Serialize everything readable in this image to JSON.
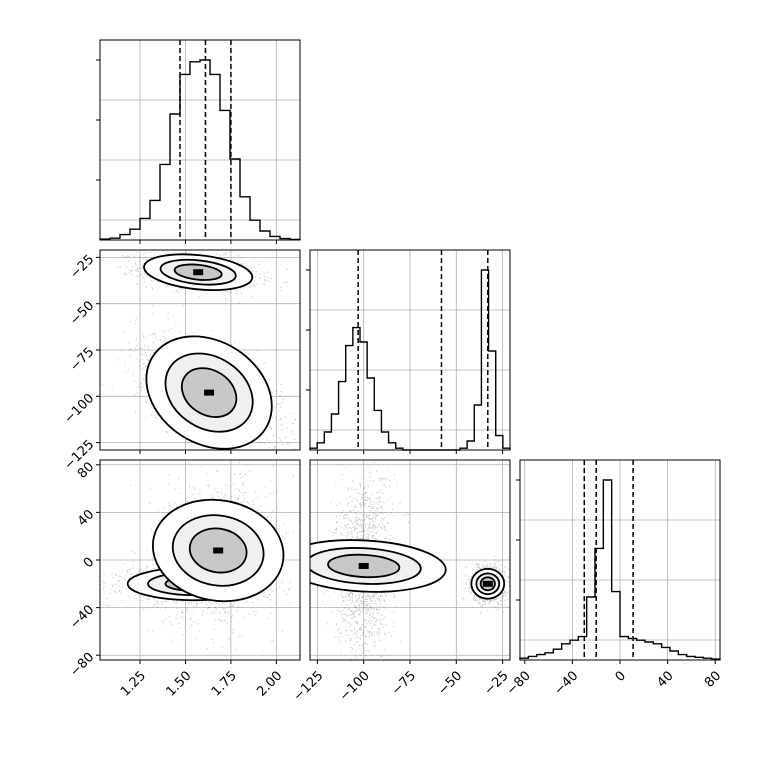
{
  "chart_data": {
    "type": "corner",
    "parameters": [
      {
        "range": [
          1.03,
          2.13
        ],
        "ticks": [
          1.25,
          1.5,
          1.75,
          2.0
        ],
        "tick_labels": [
          "1.25",
          "1.50",
          "1.75",
          "2.00"
        ],
        "quantiles": [
          1.47,
          1.61,
          1.75
        ]
      },
      {
        "range": [
          -129,
          -21
        ],
        "ticks": [
          -125,
          -100,
          -75,
          -50,
          -25
        ],
        "tick_labels": [
          "−125",
          "−100",
          "−75",
          "−50",
          "−25"
        ],
        "quantiles": [
          -103,
          -58,
          -33
        ]
      },
      {
        "range": [
          -84,
          84
        ],
        "ticks": [
          -80,
          -40,
          0,
          40,
          80
        ],
        "tick_labels": [
          "−80",
          "−40",
          "0",
          "40",
          "80"
        ],
        "quantiles": [
          -30,
          -20,
          11
        ]
      }
    ],
    "histograms": [
      {
        "param": 0,
        "edges": [
          1.03,
          2.13
        ],
        "counts": [
          0.5,
          1,
          3,
          6,
          12,
          22,
          42,
          70,
          92,
          99,
          100,
          92,
          72,
          45,
          24,
          11,
          5,
          2,
          0.8,
          0.3
        ]
      },
      {
        "param": 1,
        "edges": [
          -129,
          -21
        ],
        "counts": [
          1,
          4,
          10,
          20,
          38,
          58,
          68,
          60,
          40,
          22,
          10,
          4,
          1,
          0,
          0,
          0,
          0,
          0,
          0,
          0,
          0,
          1,
          5,
          25,
          100,
          55,
          8,
          1
        ]
      },
      {
        "param": 2,
        "edges": [
          -84,
          84
        ],
        "counts": [
          1,
          2,
          3,
          4,
          6,
          9,
          11,
          13,
          35,
          62,
          100,
          38,
          13,
          12,
          11,
          10,
          9,
          7,
          5,
          3,
          2,
          1.5,
          1,
          0.5
        ]
      }
    ],
    "joint": [
      {
        "x_param": 0,
        "y_param": 1,
        "blobs": [
          {
            "cx": 1.57,
            "cy": -33,
            "sx": 0.13,
            "sy": 4,
            "rho": -0.3,
            "weight": 0.45
          },
          {
            "cx": 1.63,
            "cy": -98,
            "sx": 0.16,
            "sy": 12,
            "rho": -0.6,
            "weight": 0.55
          }
        ]
      },
      {
        "x_param": 0,
        "y_param": 2,
        "blobs": [
          {
            "cx": 1.55,
            "cy": -20,
            "sx": 0.16,
            "sy": 6,
            "rho": 0.0,
            "weight": 0.5
          },
          {
            "cx": 1.68,
            "cy": 8,
            "sx": 0.12,
            "sy": 24,
            "rho": 0.1,
            "weight": 0.5
          }
        ]
      },
      {
        "x_param": 1,
        "y_param": 2,
        "blobs": [
          {
            "cx": -100,
            "cy": -5,
            "sx": 6,
            "sy": 30,
            "rho": 0.15,
            "weight": 0.55
          },
          {
            "cx": -33,
            "cy": -20,
            "sx": 3.5,
            "sy": 6,
            "rho": 0.0,
            "weight": 0.45
          }
        ]
      }
    ],
    "grid": true,
    "quantile_lines": "dashed"
  }
}
